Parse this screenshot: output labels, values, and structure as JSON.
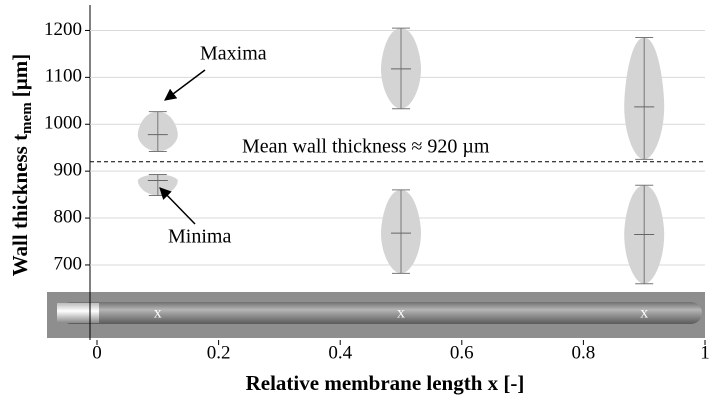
{
  "chart_data": {
    "type": "violin",
    "ylabel": [
      "Wall thickness t",
      "mem",
      "[µm]"
    ],
    "xlabel": "Relative membrane length x [-]",
    "annotation": "Mean wall thickness ≈ 920 µm",
    "mean_line": 920,
    "xlim": [
      0,
      1
    ],
    "xticks": [
      0,
      0.2,
      0.4,
      0.6,
      0.8,
      1
    ],
    "ylim": [
      540,
      1250
    ],
    "yticks": [
      700,
      800,
      900,
      1000,
      1100,
      1200
    ],
    "grid": true,
    "strip_labels": [
      "x",
      "x",
      "x"
    ],
    "x": [
      0.1,
      0.5,
      0.9
    ],
    "series": [
      {
        "name": "Maxima",
        "color": "#d4d4d4",
        "min": [
          942,
          1033,
          925
        ],
        "median": [
          978,
          1118,
          1037
        ],
        "max": [
          1027,
          1205,
          1185
        ]
      },
      {
        "name": "Minima",
        "color": "#d4d4d4",
        "min": [
          848,
          682,
          660
        ],
        "median": [
          880,
          768,
          765
        ],
        "max": [
          893,
          860,
          870
        ]
      }
    ]
  }
}
